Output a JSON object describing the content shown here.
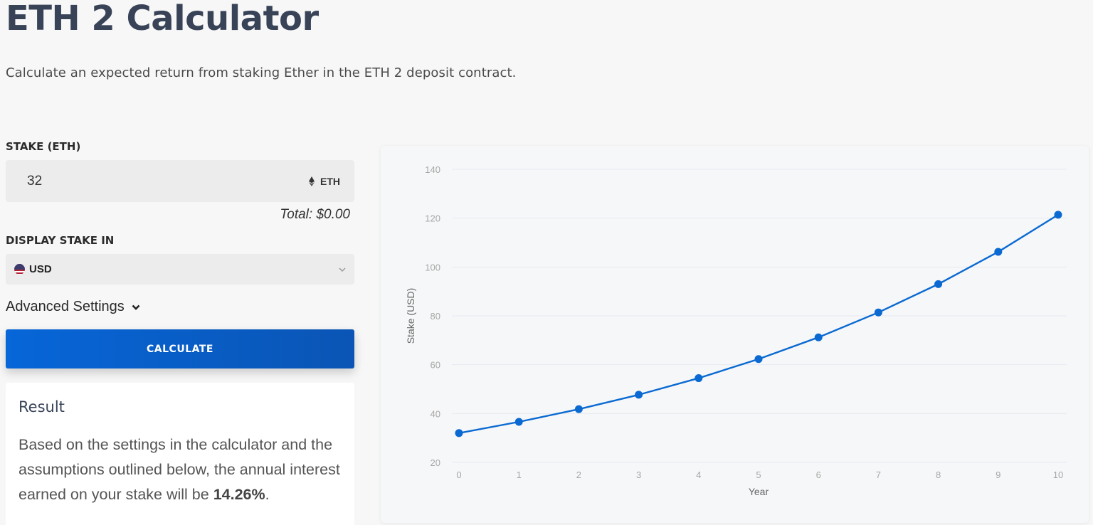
{
  "header": {
    "title": "ETH 2 Calculator",
    "subtitle": "Calculate an expected return from staking Ether in the ETH 2 deposit contract."
  },
  "form": {
    "stake_label": "STAKE (ETH)",
    "stake_value": "32",
    "stake_unit": "ETH",
    "stake_unit_icon": "ethereum-icon",
    "total": "Total: $0.00",
    "display_label": "DISPLAY STAKE IN",
    "currency": "USD",
    "currency_icon": "us-flag-icon",
    "advanced_label": "Advanced Settings",
    "calculate_label": "CALCULATE"
  },
  "result": {
    "title": "Result",
    "text_before": "Based on the settings in the calculator and the assumptions outlined below, the annual interest earned on your stake will be ",
    "rate": "14.26%",
    "text_after": "."
  },
  "colors": {
    "accent": "#0766d8",
    "line": "#0a6ad2",
    "grid": "#e6e9f2"
  },
  "chart_data": {
    "type": "line",
    "title": "",
    "xlabel": "Year",
    "ylabel": "Stake (USD)",
    "x": [
      0,
      1,
      2,
      3,
      4,
      5,
      6,
      7,
      8,
      9,
      10
    ],
    "series": [
      {
        "name": "Stake",
        "values": [
          32,
          36.6,
          41.8,
          47.7,
          54.5,
          62.3,
          71.2,
          81.4,
          93.0,
          106.2,
          121.4
        ]
      }
    ],
    "yticks": [
      20,
      40,
      60,
      80,
      100,
      120,
      140
    ],
    "ylim": [
      20,
      140
    ],
    "xlim": [
      0,
      10
    ],
    "grid": true,
    "legend": false
  }
}
